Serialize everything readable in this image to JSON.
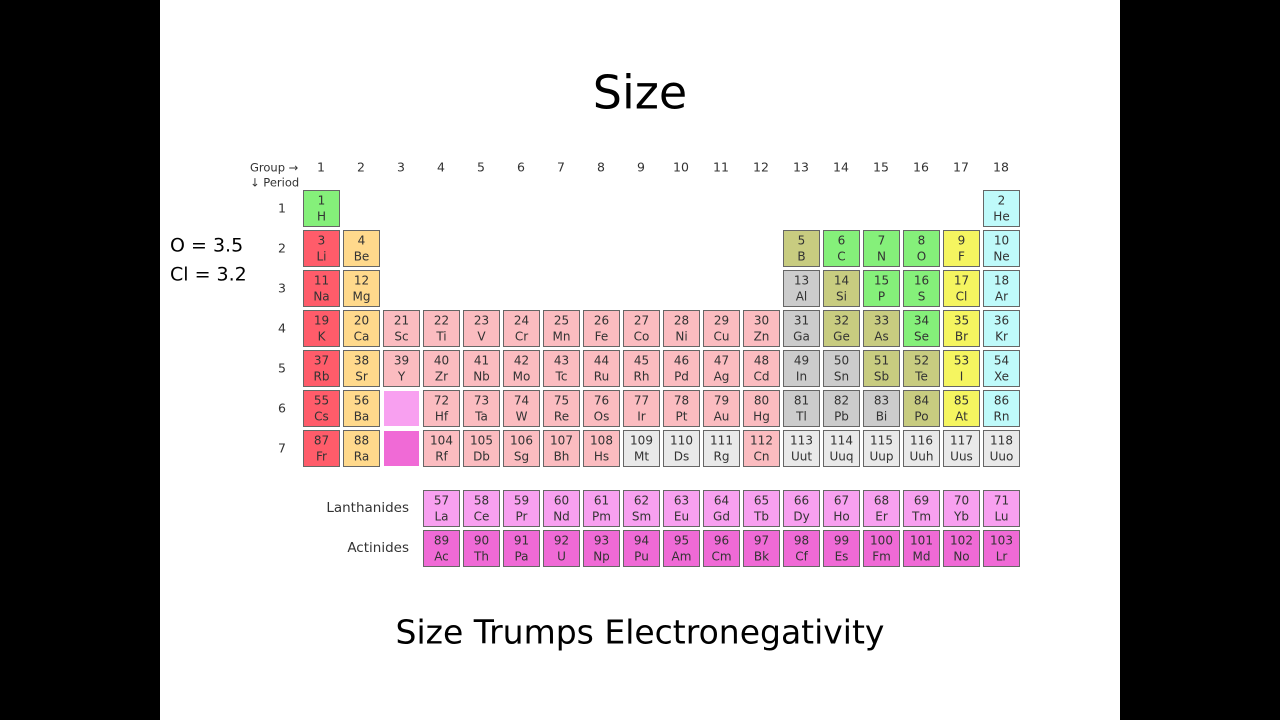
{
  "title": "Size",
  "notes": [
    "O = 3.5",
    "Cl = 3.2"
  ],
  "table": {
    "group_label": "Group →",
    "period_label": "↓ Period",
    "groups": [
      1,
      2,
      3,
      4,
      5,
      6,
      7,
      8,
      9,
      10,
      11,
      12,
      13,
      14,
      15,
      16,
      17,
      18
    ],
    "periods": [
      {
        "label": 1,
        "elements": [
          {
            "n": 1,
            "s": "H",
            "c": "#85f07a"
          },
          {
            "n": 2,
            "s": "He",
            "c": "#bffafa"
          }
        ]
      },
      {
        "label": 2,
        "elements": [
          {
            "n": 3,
            "s": "Li",
            "c": "#ff5c6a"
          },
          {
            "n": 4,
            "s": "Be",
            "c": "#ffd98c"
          },
          {
            "n": 5,
            "s": "B",
            "c": "#c8cc80"
          },
          {
            "n": 6,
            "s": "C",
            "c": "#85f07a"
          },
          {
            "n": 7,
            "s": "N",
            "c": "#85f07a"
          },
          {
            "n": 8,
            "s": "O",
            "c": "#85f07a"
          },
          {
            "n": 9,
            "s": "F",
            "c": "#f5f560"
          },
          {
            "n": 10,
            "s": "Ne",
            "c": "#bffafa"
          }
        ]
      },
      {
        "label": 3,
        "elements": [
          {
            "n": 11,
            "s": "Na",
            "c": "#ff5c6a"
          },
          {
            "n": 12,
            "s": "Mg",
            "c": "#ffd98c"
          },
          {
            "n": 13,
            "s": "Al",
            "c": "#cccccc"
          },
          {
            "n": 14,
            "s": "Si",
            "c": "#c8cc80"
          },
          {
            "n": 15,
            "s": "P",
            "c": "#85f07a"
          },
          {
            "n": 16,
            "s": "S",
            "c": "#85f07a"
          },
          {
            "n": 17,
            "s": "Cl",
            "c": "#f5f560"
          },
          {
            "n": 18,
            "s": "Ar",
            "c": "#bffafa"
          }
        ]
      },
      {
        "label": 4,
        "elements": [
          {
            "n": 19,
            "s": "K",
            "c": "#ff5c6a"
          },
          {
            "n": 20,
            "s": "Ca",
            "c": "#ffd98c"
          },
          {
            "n": 21,
            "s": "Sc",
            "c": "#fbbcc0"
          },
          {
            "n": 22,
            "s": "Ti",
            "c": "#fbbcc0"
          },
          {
            "n": 23,
            "s": "V",
            "c": "#fbbcc0"
          },
          {
            "n": 24,
            "s": "Cr",
            "c": "#fbbcc0"
          },
          {
            "n": 25,
            "s": "Mn",
            "c": "#fbbcc0"
          },
          {
            "n": 26,
            "s": "Fe",
            "c": "#fbbcc0"
          },
          {
            "n": 27,
            "s": "Co",
            "c": "#fbbcc0"
          },
          {
            "n": 28,
            "s": "Ni",
            "c": "#fbbcc0"
          },
          {
            "n": 29,
            "s": "Cu",
            "c": "#fbbcc0"
          },
          {
            "n": 30,
            "s": "Zn",
            "c": "#fbbcc0"
          },
          {
            "n": 31,
            "s": "Ga",
            "c": "#cccccc"
          },
          {
            "n": 32,
            "s": "Ge",
            "c": "#c8cc80"
          },
          {
            "n": 33,
            "s": "As",
            "c": "#c8cc80"
          },
          {
            "n": 34,
            "s": "Se",
            "c": "#85f07a"
          },
          {
            "n": 35,
            "s": "Br",
            "c": "#f5f560"
          },
          {
            "n": 36,
            "s": "Kr",
            "c": "#bffafa"
          }
        ]
      },
      {
        "label": 5,
        "elements": [
          {
            "n": 37,
            "s": "Rb",
            "c": "#ff5c6a"
          },
          {
            "n": 38,
            "s": "Sr",
            "c": "#ffd98c"
          },
          {
            "n": 39,
            "s": "Y",
            "c": "#fbbcc0"
          },
          {
            "n": 40,
            "s": "Zr",
            "c": "#fbbcc0"
          },
          {
            "n": 41,
            "s": "Nb",
            "c": "#fbbcc0"
          },
          {
            "n": 42,
            "s": "Mo",
            "c": "#fbbcc0"
          },
          {
            "n": 43,
            "s": "Tc",
            "c": "#fbbcc0"
          },
          {
            "n": 44,
            "s": "Ru",
            "c": "#fbbcc0"
          },
          {
            "n": 45,
            "s": "Rh",
            "c": "#fbbcc0"
          },
          {
            "n": 46,
            "s": "Pd",
            "c": "#fbbcc0"
          },
          {
            "n": 47,
            "s": "Ag",
            "c": "#fbbcc0"
          },
          {
            "n": 48,
            "s": "Cd",
            "c": "#fbbcc0"
          },
          {
            "n": 49,
            "s": "In",
            "c": "#cccccc"
          },
          {
            "n": 50,
            "s": "Sn",
            "c": "#cccccc"
          },
          {
            "n": 51,
            "s": "Sb",
            "c": "#c8cc80"
          },
          {
            "n": 52,
            "s": "Te",
            "c": "#c8cc80"
          },
          {
            "n": 53,
            "s": "I",
            "c": "#f5f560"
          },
          {
            "n": 54,
            "s": "Xe",
            "c": "#bffafa"
          }
        ]
      },
      {
        "label": 6,
        "elements": [
          {
            "n": 55,
            "s": "Cs",
            "c": "#ff5c6a"
          },
          {
            "n": 56,
            "s": "Ba",
            "c": "#ffd98c"
          },
          {
            "n": 72,
            "s": "Hf",
            "c": "#fbbcc0"
          },
          {
            "n": 73,
            "s": "Ta",
            "c": "#fbbcc0"
          },
          {
            "n": 74,
            "s": "W",
            "c": "#fbbcc0"
          },
          {
            "n": 75,
            "s": "Re",
            "c": "#fbbcc0"
          },
          {
            "n": 76,
            "s": "Os",
            "c": "#fbbcc0"
          },
          {
            "n": 77,
            "s": "Ir",
            "c": "#fbbcc0"
          },
          {
            "n": 78,
            "s": "Pt",
            "c": "#fbbcc0"
          },
          {
            "n": 79,
            "s": "Au",
            "c": "#fbbcc0"
          },
          {
            "n": 80,
            "s": "Hg",
            "c": "#fbbcc0"
          },
          {
            "n": 81,
            "s": "Tl",
            "c": "#cccccc"
          },
          {
            "n": 82,
            "s": "Pb",
            "c": "#cccccc"
          },
          {
            "n": 83,
            "s": "Bi",
            "c": "#cccccc"
          },
          {
            "n": 84,
            "s": "Po",
            "c": "#c8cc80"
          },
          {
            "n": 85,
            "s": "At",
            "c": "#f5f560"
          },
          {
            "n": 86,
            "s": "Rn",
            "c": "#bffafa"
          }
        ]
      },
      {
        "label": 7,
        "elements": [
          {
            "n": 87,
            "s": "Fr",
            "c": "#ff5c6a"
          },
          {
            "n": 88,
            "s": "Ra",
            "c": "#ffd98c"
          },
          {
            "n": 104,
            "s": "Rf",
            "c": "#fbbcc0"
          },
          {
            "n": 105,
            "s": "Db",
            "c": "#fbbcc0"
          },
          {
            "n": 106,
            "s": "Sg",
            "c": "#fbbcc0"
          },
          {
            "n": 107,
            "s": "Bh",
            "c": "#fbbcc0"
          },
          {
            "n": 108,
            "s": "Hs",
            "c": "#fbbcc0"
          },
          {
            "n": 109,
            "s": "Mt",
            "c": "#e9e9e9"
          },
          {
            "n": 110,
            "s": "Ds",
            "c": "#e9e9e9"
          },
          {
            "n": 111,
            "s": "Rg",
            "c": "#e9e9e9"
          },
          {
            "n": 112,
            "s": "Cn",
            "c": "#fbbcc0"
          },
          {
            "n": 113,
            "s": "Uut",
            "c": "#e9e9e9"
          },
          {
            "n": 114,
            "s": "Uuq",
            "c": "#e9e9e9"
          },
          {
            "n": 115,
            "s": "Uup",
            "c": "#e9e9e9"
          },
          {
            "n": 116,
            "s": "Uuh",
            "c": "#e9e9e9"
          },
          {
            "n": 117,
            "s": "Uus",
            "c": "#e9e9e9"
          },
          {
            "n": 118,
            "s": "Uuo",
            "c": "#e9e9e9"
          }
        ]
      }
    ],
    "series": [
      {
        "label": "Lanthanides",
        "elements": [
          {
            "n": 57,
            "s": "La",
            "c": "#f8a0f0"
          },
          {
            "n": 58,
            "s": "Ce",
            "c": "#f8a0f0"
          },
          {
            "n": 59,
            "s": "Pr",
            "c": "#f8a0f0"
          },
          {
            "n": 60,
            "s": "Nd",
            "c": "#f8a0f0"
          },
          {
            "n": 61,
            "s": "Pm",
            "c": "#f8a0f0"
          },
          {
            "n": 62,
            "s": "Sm",
            "c": "#f8a0f0"
          },
          {
            "n": 63,
            "s": "Eu",
            "c": "#f8a0f0"
          },
          {
            "n": 64,
            "s": "Gd",
            "c": "#f8a0f0"
          },
          {
            "n": 65,
            "s": "Tb",
            "c": "#f8a0f0"
          },
          {
            "n": 66,
            "s": "Dy",
            "c": "#f8a0f0"
          },
          {
            "n": 67,
            "s": "Ho",
            "c": "#f8a0f0"
          },
          {
            "n": 68,
            "s": "Er",
            "c": "#f8a0f0"
          },
          {
            "n": 69,
            "s": "Tm",
            "c": "#f8a0f0"
          },
          {
            "n": 70,
            "s": "Yb",
            "c": "#f8a0f0"
          },
          {
            "n": 71,
            "s": "Lu",
            "c": "#f8a0f0"
          }
        ]
      },
      {
        "label": "Actinides",
        "elements": [
          {
            "n": 89,
            "s": "Ac",
            "c": "#f06ad6"
          },
          {
            "n": 90,
            "s": "Th",
            "c": "#f06ad6"
          },
          {
            "n": 91,
            "s": "Pa",
            "c": "#f06ad6"
          },
          {
            "n": 92,
            "s": "U",
            "c": "#f06ad6"
          },
          {
            "n": 93,
            "s": "Np",
            "c": "#f06ad6"
          },
          {
            "n": 94,
            "s": "Pu",
            "c": "#f06ad6"
          },
          {
            "n": 95,
            "s": "Am",
            "c": "#f06ad6"
          },
          {
            "n": 96,
            "s": "Cm",
            "c": "#f06ad6"
          },
          {
            "n": 97,
            "s": "Bk",
            "c": "#f06ad6"
          },
          {
            "n": 98,
            "s": "Cf",
            "c": "#f06ad6"
          },
          {
            "n": 99,
            "s": "Es",
            "c": "#f06ad6"
          },
          {
            "n": 100,
            "s": "Fm",
            "c": "#f06ad6"
          },
          {
            "n": 101,
            "s": "Md",
            "c": "#f06ad6"
          },
          {
            "n": 102,
            "s": "No",
            "c": "#f06ad6"
          },
          {
            "n": 103,
            "s": "Lr",
            "c": "#f06ad6"
          }
        ]
      }
    ]
  },
  "footer": "Size Trumps Electronegativity"
}
